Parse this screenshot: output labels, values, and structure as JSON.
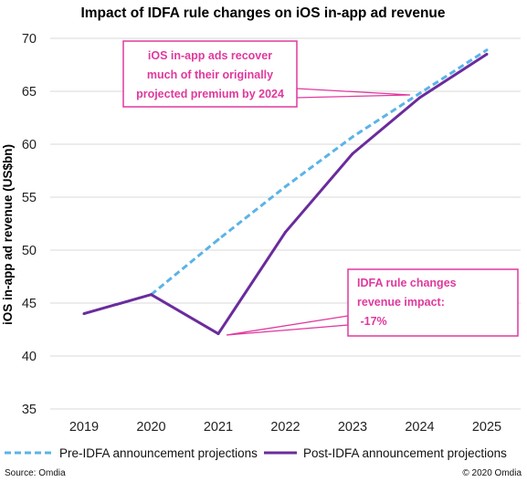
{
  "chart_data": {
    "type": "line",
    "title": "Impact of IDFA rule changes on iOS in-app ad revenue",
    "xlabel": "",
    "ylabel": "iOS in-app ad revenue (US$bn)",
    "categories": [
      "2019",
      "2020",
      "2021",
      "2022",
      "2023",
      "2024",
      "2025"
    ],
    "ylim": [
      35,
      70
    ],
    "yticks": [
      35,
      40,
      45,
      50,
      55,
      60,
      65,
      70
    ],
    "grid": true,
    "legend_position": "bottom",
    "series": [
      {
        "name": "Pre-IDFA announcement projections",
        "style": "dashed",
        "color": "#5BB3E8",
        "values": [
          null,
          45.8,
          51.0,
          56.0,
          60.7,
          64.8,
          68.9
        ]
      },
      {
        "name": "Post-IDFA announcement projections",
        "style": "solid",
        "color": "#6A2C9C",
        "values": [
          44.0,
          45.8,
          42.1,
          51.7,
          59.1,
          64.4,
          68.5
        ]
      }
    ],
    "annotations": [
      {
        "id": "recover",
        "lines": [
          "iOS in-app ads recover",
          "much of their originally",
          "projected premium by 2024"
        ],
        "color": "#E0399E"
      },
      {
        "id": "impact",
        "lines": [
          "IDFA rule changes",
          "revenue impact:",
          " -17%"
        ],
        "color": "#E0399E"
      }
    ],
    "source": "Source: Omdia",
    "copyright": "© 2020 Omdia"
  }
}
